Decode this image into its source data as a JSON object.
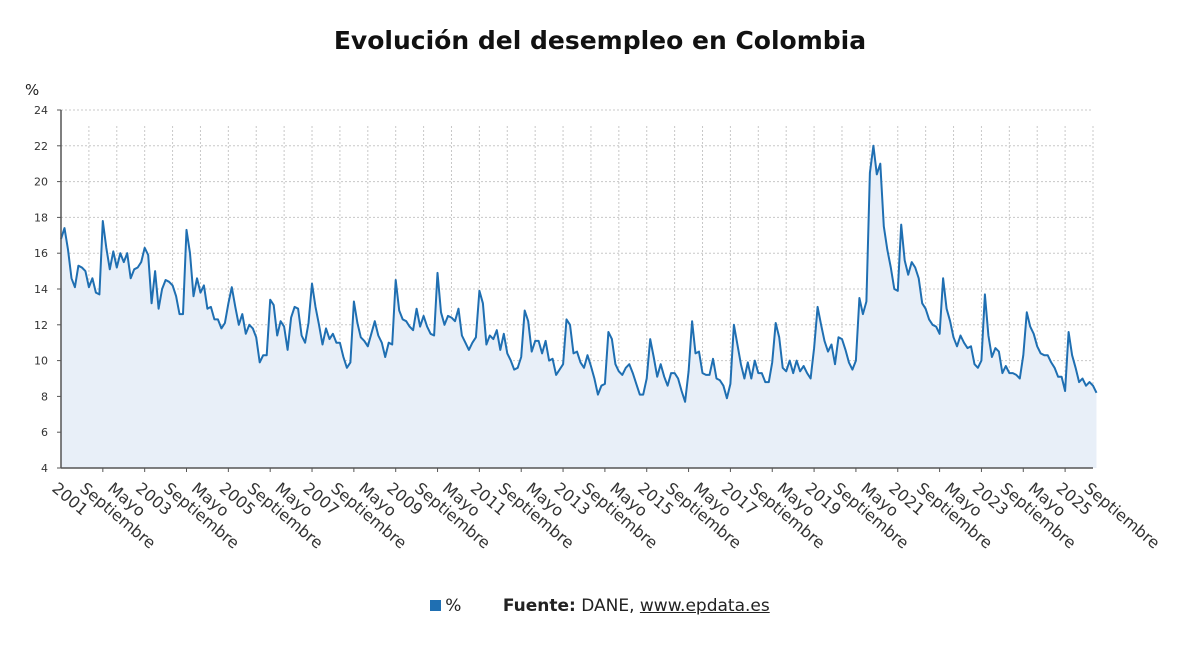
{
  "title": "Evolución del desempleo en Colombia",
  "source": {
    "label": "Fuente:",
    "provider": "DANE,",
    "link": "www.epdata.es"
  },
  "colors": {
    "line": "#1f6fb2",
    "fill": "#e8eff8",
    "grid": "#c8c8c8",
    "axis": "#555555"
  },
  "chart_data": {
    "type": "area",
    "title": "Evolución del desempleo en Colombia",
    "ylabel": "%",
    "xlabel": "",
    "ylim": [
      4,
      24
    ],
    "yticks": [
      4,
      6,
      8,
      10,
      12,
      14,
      16,
      18,
      20,
      22,
      24
    ],
    "grid": true,
    "legend": "bottom-center",
    "x_start": "2001-01",
    "x_end": "2025-09",
    "xtick_labels": [
      {
        "date": "2001-01",
        "label": "2001"
      },
      {
        "date": "2001-09",
        "label": "Septiembre"
      },
      {
        "date": "2002-05",
        "label": "Mayo"
      },
      {
        "date": "2003-01",
        "label": "2003"
      },
      {
        "date": "2003-09",
        "label": "Septiembre"
      },
      {
        "date": "2004-05",
        "label": "Mayo"
      },
      {
        "date": "2005-01",
        "label": "2005"
      },
      {
        "date": "2005-09",
        "label": "Septiembre"
      },
      {
        "date": "2006-05",
        "label": "Mayo"
      },
      {
        "date": "2007-01",
        "label": "2007"
      },
      {
        "date": "2007-09",
        "label": "Septiembre"
      },
      {
        "date": "2008-05",
        "label": "Mayo"
      },
      {
        "date": "2009-01",
        "label": "2009"
      },
      {
        "date": "2009-09",
        "label": "Septiembre"
      },
      {
        "date": "2010-05",
        "label": "Mayo"
      },
      {
        "date": "2011-01",
        "label": "2011"
      },
      {
        "date": "2011-09",
        "label": "Septiembre"
      },
      {
        "date": "2012-05",
        "label": "Mayo"
      },
      {
        "date": "2013-01",
        "label": "2013"
      },
      {
        "date": "2013-09",
        "label": "Septiembre"
      },
      {
        "date": "2014-05",
        "label": "Mayo"
      },
      {
        "date": "2015-01",
        "label": "2015"
      },
      {
        "date": "2015-09",
        "label": "Septiembre"
      },
      {
        "date": "2016-05",
        "label": "Mayo"
      },
      {
        "date": "2017-01",
        "label": "2017"
      },
      {
        "date": "2017-09",
        "label": "Septiembre"
      },
      {
        "date": "2018-05",
        "label": "Mayo"
      },
      {
        "date": "2019-01",
        "label": "2019"
      },
      {
        "date": "2019-09",
        "label": "Septiembre"
      },
      {
        "date": "2020-05",
        "label": "Mayo"
      },
      {
        "date": "2021-01",
        "label": "2021"
      },
      {
        "date": "2021-09",
        "label": "Septiembre"
      },
      {
        "date": "2022-05",
        "label": "Mayo"
      },
      {
        "date": "2023-01",
        "label": "2023"
      },
      {
        "date": "2023-09",
        "label": "Septiembre"
      },
      {
        "date": "2024-05",
        "label": "Mayo"
      },
      {
        "date": "2025-01",
        "label": "2025"
      },
      {
        "date": "2025-09",
        "label": "Septiembre"
      }
    ],
    "series": [
      {
        "name": "%",
        "values": [
          16.8,
          17.4,
          16.2,
          14.6,
          14.1,
          15.3,
          15.2,
          15.0,
          14.1,
          14.6,
          13.8,
          13.7,
          17.8,
          16.3,
          15.1,
          16.1,
          15.2,
          16.0,
          15.5,
          16.0,
          14.6,
          15.1,
          15.2,
          15.5,
          16.3,
          15.9,
          13.2,
          15.0,
          12.9,
          14.0,
          14.5,
          14.4,
          14.2,
          13.6,
          12.6,
          12.6,
          17.3,
          16.0,
          13.6,
          14.6,
          13.8,
          14.2,
          12.9,
          13.0,
          12.3,
          12.3,
          11.8,
          12.1,
          13.2,
          14.1,
          13.0,
          12.0,
          12.6,
          11.5,
          12.0,
          11.8,
          11.3,
          9.9,
          10.3,
          10.3,
          13.4,
          13.1,
          11.4,
          12.2,
          11.9,
          10.6,
          12.4,
          13.0,
          12.9,
          11.4,
          11.0,
          12.1,
          14.3,
          13.0,
          12.0,
          10.9,
          11.8,
          11.2,
          11.5,
          11.0,
          11.0,
          10.2,
          9.6,
          9.9,
          13.3,
          12.1,
          11.3,
          11.1,
          10.8,
          11.5,
          12.2,
          11.4,
          11.0,
          10.2,
          11.0,
          10.9,
          14.5,
          12.8,
          12.3,
          12.2,
          11.9,
          11.7,
          12.9,
          11.9,
          12.5,
          11.9,
          11.5,
          11.4,
          14.9,
          12.7,
          12.0,
          12.5,
          12.4,
          12.2,
          12.9,
          11.4,
          11.0,
          10.6,
          11.0,
          11.3,
          13.9,
          13.2,
          10.9,
          11.4,
          11.2,
          11.7,
          10.6,
          11.5,
          10.4,
          10.0,
          9.5,
          9.6,
          10.2,
          12.8,
          12.2,
          10.5,
          11.1,
          11.1,
          10.4,
          11.1,
          10.0,
          10.1,
          9.2,
          9.5,
          9.8,
          12.3,
          12.0,
          10.4,
          10.5,
          9.9,
          9.6,
          10.3,
          9.7,
          9.0,
          8.1,
          8.6,
          8.7,
          11.6,
          11.2,
          9.8,
          9.4,
          9.2,
          9.6,
          9.8,
          9.3,
          8.7,
          8.1,
          8.1,
          9.0,
          11.2,
          10.2,
          9.1,
          9.8,
          9.1,
          8.6,
          9.3,
          9.3,
          9.0,
          8.3,
          7.7,
          9.4,
          12.2,
          10.4,
          10.5,
          9.3,
          9.2,
          9.2,
          10.1,
          9.0,
          8.9,
          8.6,
          7.9,
          8.7,
          12.0,
          10.9,
          9.8,
          9.0,
          9.9,
          9.0,
          10.0,
          9.3,
          9.3,
          8.8,
          8.8,
          9.9,
          12.1,
          11.3,
          9.6,
          9.4,
          10.0,
          9.3,
          10.0,
          9.4,
          9.7,
          9.3,
          9.0,
          10.7,
          13.0,
          12.0,
          11.1,
          10.5,
          10.9,
          9.8,
          11.3,
          11.2,
          10.6,
          9.9,
          9.5,
          10.0,
          13.5,
          12.6,
          13.3,
          20.5,
          22.0,
          20.4,
          21.0,
          17.5,
          16.2,
          15.2,
          14.0,
          13.9,
          17.6,
          15.6,
          14.8,
          15.5,
          15.2,
          14.6,
          13.2,
          12.9,
          12.3,
          12.0,
          11.9,
          11.5,
          14.6,
          12.9,
          12.2,
          11.3,
          10.8,
          11.4,
          11.0,
          10.7,
          10.8,
          9.8,
          9.6,
          10.0,
          13.7,
          11.4,
          10.2,
          10.7,
          10.5,
          9.3,
          9.7,
          9.3,
          9.3,
          9.2,
          9.0,
          10.3,
          12.7,
          11.9,
          11.5,
          10.8,
          10.4,
          10.3,
          10.3,
          9.9,
          9.6,
          9.1,
          9.1,
          8.3,
          11.6,
          10.3,
          9.6,
          8.8,
          9.0,
          8.6,
          8.8,
          8.6,
          8.2
        ]
      }
    ]
  }
}
